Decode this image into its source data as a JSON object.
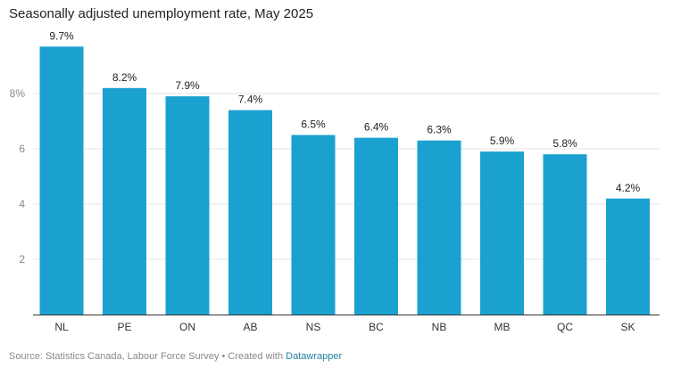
{
  "title": "Seasonally adjusted unemployment rate, May 2025",
  "footer": {
    "source": "Source: Statistics Canada, Labour Force Survey • Created with ",
    "link": "Datawrapper"
  },
  "colors": {
    "bar": "#1ba1cf",
    "grid": "#e5e5e5",
    "baseline": "#333333"
  },
  "chart_data": {
    "type": "bar",
    "title": "Seasonally adjusted unemployment rate, May 2025",
    "xlabel": "",
    "ylabel": "",
    "categories": [
      "NL",
      "PE",
      "ON",
      "AB",
      "NS",
      "BC",
      "NB",
      "MB",
      "QC",
      "SK"
    ],
    "values": [
      9.7,
      8.2,
      7.9,
      7.4,
      6.5,
      6.4,
      6.3,
      5.9,
      5.8,
      4.2
    ],
    "value_labels": [
      "9.7%",
      "8.2%",
      "7.9%",
      "7.4%",
      "6.5%",
      "6.4%",
      "6.3%",
      "5.9%",
      "5.8%",
      "4.2%"
    ],
    "yticks": [
      2,
      4,
      6,
      8
    ],
    "ytick_labels": [
      "2",
      "4",
      "6",
      "8%"
    ],
    "ylim": [
      0,
      10
    ],
    "grid": true
  }
}
